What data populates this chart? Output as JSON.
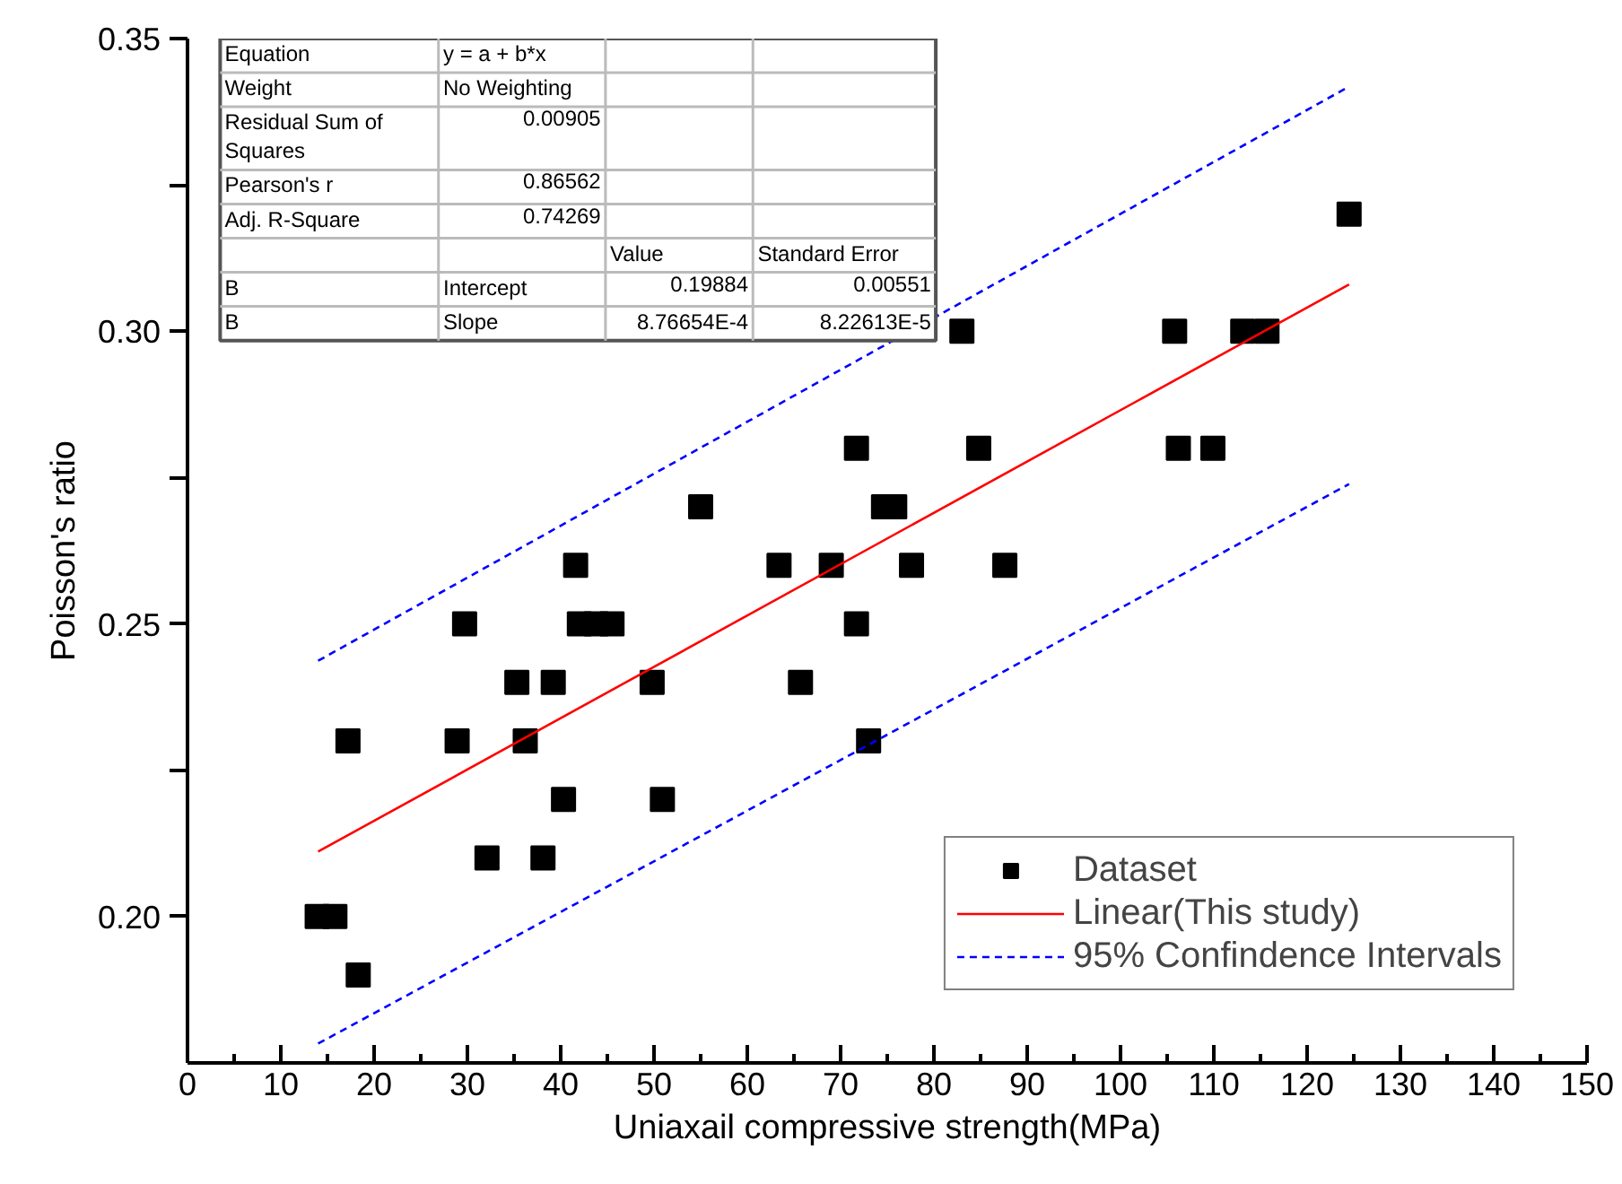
{
  "chart_data": {
    "type": "scatter",
    "xlabel": "Uniaxail compressive strength(MPa)",
    "ylabel": "Poisson's ratio",
    "xlim": [
      0,
      150
    ],
    "xticks": [
      0,
      {
        "value": 5,
        "label": null
      },
      10,
      {
        "value": 15,
        "label": null
      },
      20,
      {
        "value": 25,
        "label": null
      },
      30,
      {
        "value": 35,
        "label": null
      },
      40,
      {
        "value": 45,
        "label": null
      },
      50,
      {
        "value": 55,
        "label": null
      },
      60,
      {
        "value": 65,
        "label": null
      },
      70,
      {
        "value": 75,
        "label": null
      },
      80,
      {
        "value": 85,
        "label": null
      },
      90,
      {
        "value": 95,
        "label": null
      },
      100,
      {
        "value": 105,
        "label": null
      },
      110,
      {
        "value": 115,
        "label": null
      },
      120,
      {
        "value": 125,
        "label": null
      },
      130,
      {
        "value": 135,
        "label": null
      },
      140,
      {
        "value": 145,
        "label": null
      },
      150
    ],
    "ylim": [
      0.175,
      0.35
    ],
    "yticks": [
      {
        "value": 0.2,
        "label": "0.20"
      },
      {
        "value": 0.225,
        "label": null
      },
      {
        "value": 0.25,
        "label": "0.25"
      },
      {
        "value": 0.275,
        "label": null
      },
      {
        "value": 0.3,
        "label": "0.30"
      },
      {
        "value": 0.325,
        "label": null
      },
      {
        "value": 0.35,
        "label": "0.35"
      }
    ],
    "grid": false,
    "legend": "bottom right",
    "series": [
      {
        "name": "Dataset",
        "color": "#000000",
        "marker": "square",
        "x": [
          124.5,
          83,
          105.8,
          113.1,
          115.7,
          71.7,
          84.8,
          106.2,
          109.9,
          55,
          74.6,
          75.8,
          41.6,
          63.4,
          69,
          77.6,
          87.6,
          29.7,
          42,
          43.8,
          45.5,
          71.7,
          35.3,
          39.2,
          49.8,
          65.7,
          17.2,
          28.9,
          36.2,
          73,
          40.3,
          50.9,
          32.1,
          38.1,
          13.9,
          15.8,
          18.3
        ],
        "values": [
          0.32,
          0.3,
          0.3,
          0.3,
          0.3,
          0.28,
          0.28,
          0.28,
          0.28,
          0.27,
          0.27,
          0.27,
          0.26,
          0.26,
          0.26,
          0.26,
          0.26,
          0.25,
          0.25,
          0.25,
          0.25,
          0.25,
          0.24,
          0.24,
          0.24,
          0.24,
          0.23,
          0.23,
          0.23,
          0.23,
          0.22,
          0.22,
          0.21,
          0.21,
          0.2,
          0.2,
          0.19
        ]
      },
      {
        "type": "line",
        "name": "Linear(This study)",
        "color": "#ff0000",
        "line_style": "solid",
        "x": [
          14,
          124.5
        ],
        "values": [
          0.2111,
          0.308
        ]
      },
      {
        "type": "line",
        "name": "95% Confindence Intervals",
        "color": "#0000ff",
        "line_style": "dashed",
        "x": [
          14,
          124.5
        ],
        "values": [
          0.2437,
          0.3418
        ]
      },
      {
        "type": "line",
        "color": "#0000ff",
        "line_style": "dashed",
        "x": [
          14,
          124.5
        ],
        "values": [
          0.1783,
          0.2739
        ]
      }
    ],
    "annotations": [
      "Equation",
      "y = a + b*x",
      "Weight",
      "No Weighting",
      "Residual Sum of Squares",
      "0.00905",
      "Pearson's r",
      "0.86562",
      "Adj. R-Square",
      "0.74269",
      "Value",
      "Standard Error",
      "B",
      "Intercept",
      "0.19884",
      "0.00551",
      "B",
      "Slope",
      "8.76654E-4",
      "8.22613E-5"
    ]
  }
}
